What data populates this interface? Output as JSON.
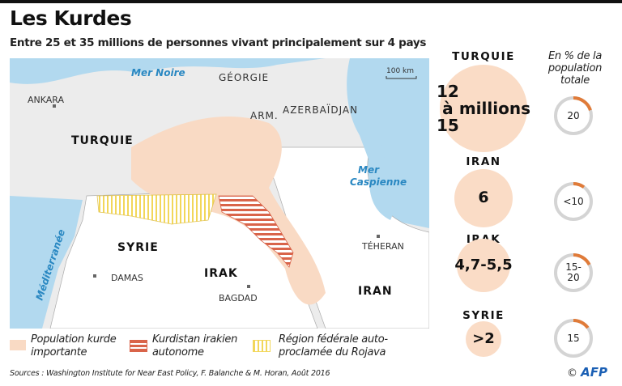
{
  "title": "Les Kurdes",
  "subtitle": "Entre 25 et 35 millions de personnes vivant principalement sur 4 pays",
  "colors": {
    "sea": "#b2d9ef",
    "land": "#ececec",
    "kurd": "#f9dac4",
    "kurdistan": "#d9644a",
    "rojava": "#f2d75a",
    "ring": "#d4d4d4",
    "ring_accent": "#e07b39"
  },
  "map": {
    "scale": "100 km",
    "seas": [
      "Mer Noire",
      "Mer Caspienne",
      "Méditerranée"
    ],
    "sea_caspian": [
      "Mer",
      "Caspienne"
    ],
    "countries": [
      "GÉORGIE",
      "ARM.",
      "AZERBAÏDJAN",
      "TURQUIE",
      "SYRIE",
      "IRAK",
      "IRAN"
    ],
    "cities": [
      "ANKARA",
      "DAMAS",
      "BAGDAD",
      "TÉHERAN"
    ]
  },
  "legend": [
    {
      "line1": "Population kurde",
      "line2": "importante"
    },
    {
      "line1": "Kurdistan irakien",
      "line2": "autonome"
    },
    {
      "line1": "Région fédérale auto-",
      "line2": "proclamée du Rojava"
    }
  ],
  "source": "Sources : Washington Institute for Near East Policy, F. Balanche & M. Horan, Août 2016",
  "pct_header": [
    "En % de la",
    "population",
    "totale"
  ],
  "countries": [
    {
      "name": "TURQUIE",
      "population": [
        "12 à 15",
        "millions"
      ],
      "pct": [
        "20"
      ],
      "pct_fraction": 0.2
    },
    {
      "name": "IRAN",
      "population": [
        "6"
      ],
      "pct": [
        "<10"
      ],
      "pct_fraction": 0.1
    },
    {
      "name": "IRAK",
      "population": [
        "4,7-",
        "5,5"
      ],
      "pct": [
        "15-",
        "20"
      ],
      "pct_fraction": 0.175
    },
    {
      "name": "SYRIE",
      "population": [
        ">2"
      ],
      "pct": [
        "15"
      ],
      "pct_fraction": 0.15
    }
  ],
  "credit": {
    "symbol": "©",
    "brand": "AFP"
  }
}
